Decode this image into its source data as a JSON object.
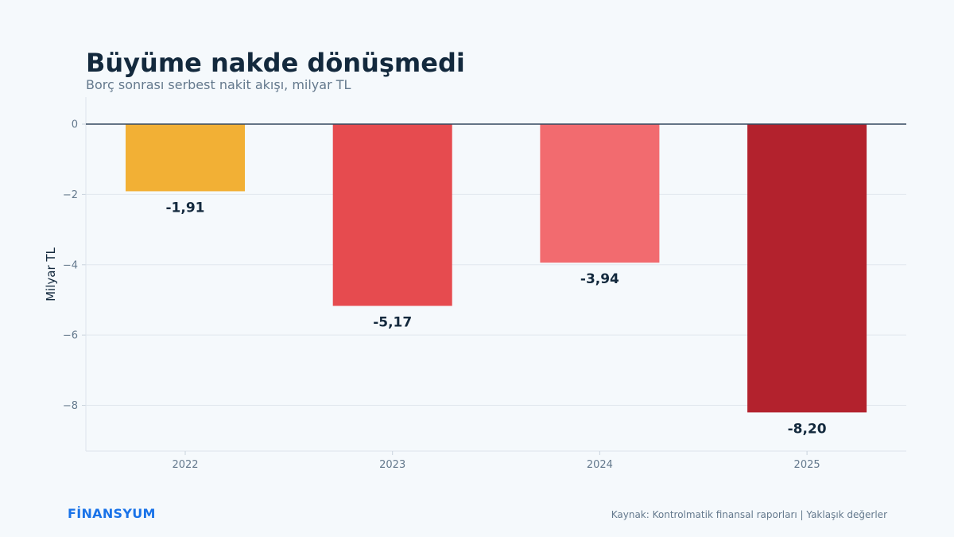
{
  "header": {
    "title": "Büyüme nakde dönüşmedi",
    "subtitle": "Borç sonrası serbest nakit akışı, milyar TL"
  },
  "footer": {
    "brand": "FİNANSYUM",
    "source": "Kaynak: Kontrolmatik finansal raporları | Yaklaşık değerler"
  },
  "chart_data": {
    "type": "bar",
    "title": "Büyüme nakde dönüşmedi",
    "subtitle": "Borç sonrası serbest nakit akışı, milyar TL",
    "xlabel": "",
    "ylabel": "Milyar TL",
    "categories": [
      "2022",
      "2023",
      "2024",
      "2025"
    ],
    "values": [
      -1.91,
      -5.17,
      -3.94,
      -8.2
    ],
    "value_labels": [
      "-1,91",
      "-5,17",
      "-3,94",
      "-8,20"
    ],
    "bar_colors": [
      "#f2b035",
      "#e64b4f",
      "#f26b6f",
      "#b3222d"
    ],
    "yticks": [
      0,
      -2,
      -4,
      -6,
      -8
    ],
    "ytick_labels": [
      "0",
      "−2",
      "−4",
      "−6",
      "−8"
    ],
    "ylim": [
      -9.3,
      0.77
    ],
    "grid": true,
    "legend": "none"
  }
}
